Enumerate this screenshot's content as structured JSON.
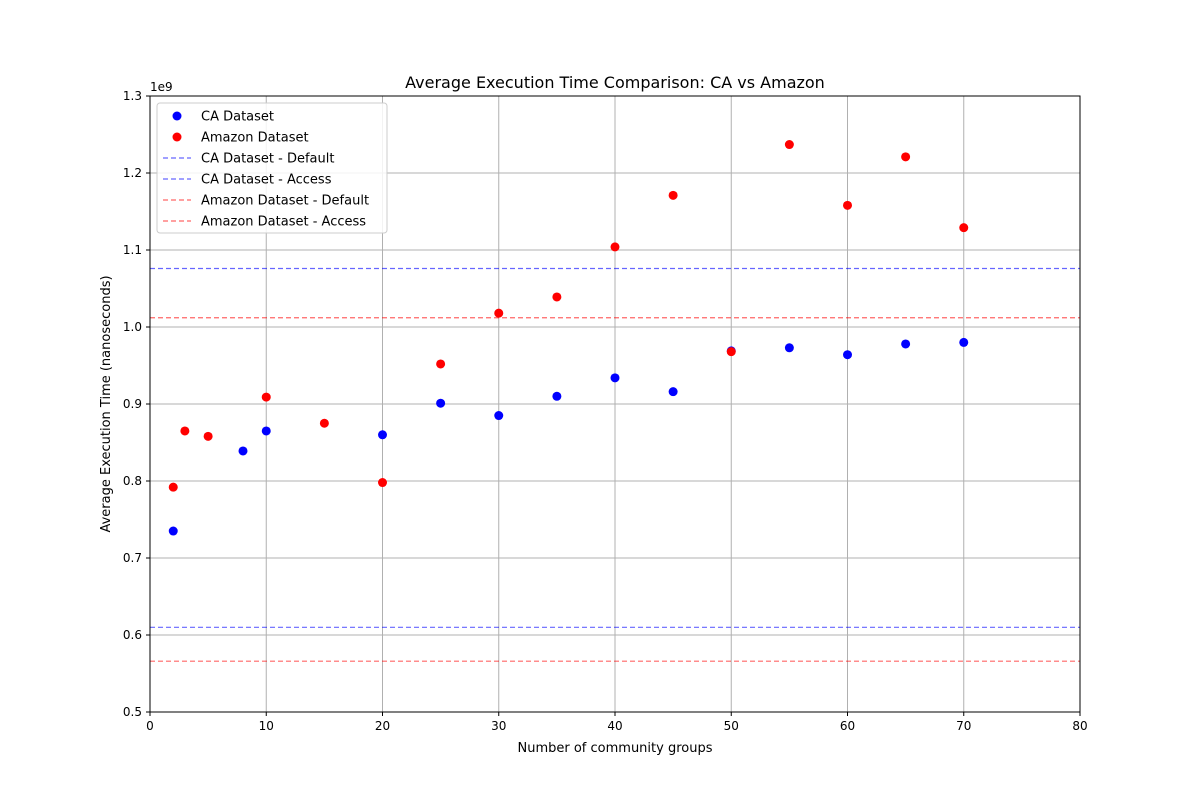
{
  "chart_data": {
    "type": "scatter",
    "title": "Average Execution Time Comparison: CA vs Amazon",
    "xlabel": "Number of community groups",
    "ylabel": "Average Execution Time (nanoseconds)",
    "y_offset_label": "1e9",
    "xlim": [
      0,
      80
    ],
    "ylim": [
      0.5,
      1.3
    ],
    "x_ticks": [
      0,
      10,
      20,
      30,
      40,
      50,
      60,
      70,
      80
    ],
    "x_tick_labels": [
      "0",
      "10",
      "20",
      "30",
      "40",
      "50",
      "60",
      "70",
      "80"
    ],
    "y_ticks": [
      0.5,
      0.6,
      0.7,
      0.8,
      0.9,
      1.0,
      1.1,
      1.2,
      1.3
    ],
    "y_tick_labels": [
      "0.5",
      "0.6",
      "0.7",
      "0.8",
      "0.9",
      "1.0",
      "1.1",
      "1.2",
      "1.3"
    ],
    "grid": true,
    "legend_position": "top-left",
    "series": [
      {
        "name": "CA Dataset",
        "color": "#0000ff",
        "x": [
          2,
          8,
          10,
          20,
          25,
          30,
          35,
          40,
          45,
          50,
          55,
          60,
          65,
          70
        ],
        "y": [
          0.735,
          0.839,
          0.865,
          0.86,
          0.901,
          0.885,
          0.91,
          0.934,
          0.916,
          0.969,
          0.973,
          0.964,
          0.978,
          0.98
        ]
      },
      {
        "name": "Amazon Dataset",
        "color": "#ff0000",
        "x": [
          2,
          3,
          5,
          10,
          15,
          20,
          25,
          30,
          35,
          40,
          45,
          50,
          55,
          60,
          65,
          70
        ],
        "y": [
          0.792,
          0.865,
          0.858,
          0.909,
          0.875,
          0.798,
          0.952,
          1.018,
          1.039,
          1.104,
          1.171,
          0.968,
          1.237,
          1.158,
          1.221,
          1.129
        ]
      }
    ],
    "reference_lines": [
      {
        "name": "CA Dataset - Default",
        "color": "#0000ff",
        "y": 1.076
      },
      {
        "name": "CA Dataset - Access",
        "color": "#0000ff",
        "y": 0.61
      },
      {
        "name": "Amazon Dataset - Default",
        "color": "#ff0000",
        "y": 1.012
      },
      {
        "name": "Amazon Dataset - Access",
        "color": "#ff0000",
        "y": 0.566
      }
    ]
  }
}
